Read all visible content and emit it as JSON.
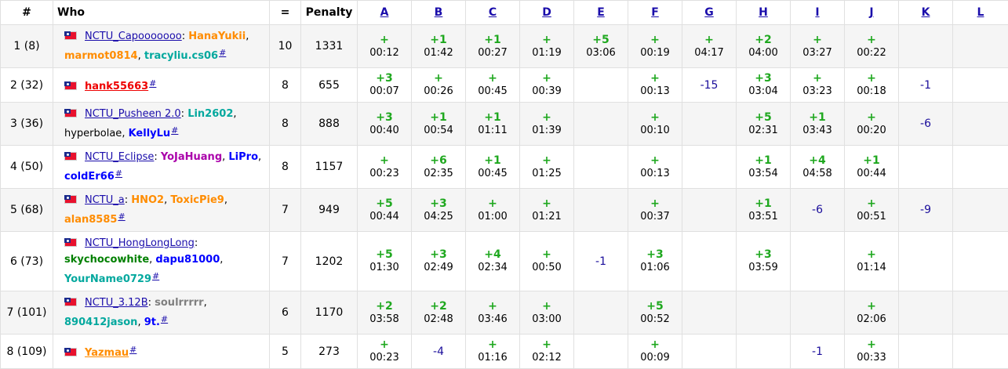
{
  "header": {
    "rank": "#",
    "who": "Who",
    "solved": "=",
    "penalty": "Penalty",
    "problems": [
      "A",
      "B",
      "C",
      "D",
      "E",
      "F",
      "G",
      "H",
      "I",
      "J",
      "K",
      "L"
    ]
  },
  "colors": {
    "link": "#1a0dab",
    "accepted": "#1fa81f",
    "wrong": "#1a0d9b",
    "row_alt": "#f5f5f5",
    "handle_red": "#e00000",
    "handle_orange": "#ff8c00",
    "handle_violet": "#aa00aa",
    "handle_blue": "#0000ff",
    "handle_cyan": "#03a89e",
    "handle_green": "#008000",
    "handle_gray": "#808080"
  },
  "rows": [
    {
      "rank": "1 (8)",
      "solved": "10",
      "penalty": "1331",
      "team": "NCTU_Capooooooo",
      "team_style": "link",
      "members": [
        {
          "name": "HanaYukii",
          "color": "#ff8c00"
        },
        {
          "name": "marmot0814",
          "color": "#ff8c00"
        },
        {
          "name": "tracyliu.cs06",
          "color": "#03a89e"
        }
      ],
      "cells": [
        {
          "mark": "+",
          "time": "00:12"
        },
        {
          "mark": "+1",
          "time": "01:42"
        },
        {
          "mark": "+1",
          "time": "00:27"
        },
        {
          "mark": "+",
          "time": "01:19"
        },
        {
          "mark": "+5",
          "time": "03:06"
        },
        {
          "mark": "+",
          "time": "00:19"
        },
        {
          "mark": "+",
          "time": "04:17"
        },
        {
          "mark": "+2",
          "time": "04:00"
        },
        {
          "mark": "+",
          "time": "03:27"
        },
        {
          "mark": "+",
          "time": "00:22"
        },
        {
          "mark": "",
          "time": ""
        },
        {
          "mark": "",
          "time": ""
        }
      ]
    },
    {
      "rank": "2 (32)",
      "solved": "8",
      "penalty": "655",
      "team": "hank55663",
      "team_style": "red",
      "members": [],
      "cells": [
        {
          "mark": "+3",
          "time": "00:07"
        },
        {
          "mark": "+",
          "time": "00:26"
        },
        {
          "mark": "+",
          "time": "00:45"
        },
        {
          "mark": "+",
          "time": "00:39"
        },
        {
          "mark": "",
          "time": ""
        },
        {
          "mark": "+",
          "time": "00:13"
        },
        {
          "mark": "-15",
          "time": ""
        },
        {
          "mark": "+3",
          "time": "03:04"
        },
        {
          "mark": "+",
          "time": "03:23"
        },
        {
          "mark": "+",
          "time": "00:18"
        },
        {
          "mark": "-1",
          "time": ""
        },
        {
          "mark": "",
          "time": ""
        }
      ]
    },
    {
      "rank": "3 (36)",
      "solved": "8",
      "penalty": "888",
      "team": "NCTU_Pusheen 2.0",
      "team_style": "link",
      "members": [
        {
          "name": "Lin2602",
          "color": "#03a89e"
        },
        {
          "name": "hyperbolae",
          "color": "#000000",
          "plain": true
        },
        {
          "name": "KellyLu",
          "color": "#0000ff"
        }
      ],
      "cells": [
        {
          "mark": "+3",
          "time": "00:40"
        },
        {
          "mark": "+1",
          "time": "00:54"
        },
        {
          "mark": "+1",
          "time": "01:11"
        },
        {
          "mark": "+",
          "time": "01:39"
        },
        {
          "mark": "",
          "time": ""
        },
        {
          "mark": "+",
          "time": "00:10"
        },
        {
          "mark": "",
          "time": ""
        },
        {
          "mark": "+5",
          "time": "02:31"
        },
        {
          "mark": "+1",
          "time": "03:43"
        },
        {
          "mark": "+",
          "time": "00:20"
        },
        {
          "mark": "-6",
          "time": ""
        },
        {
          "mark": "",
          "time": ""
        }
      ]
    },
    {
      "rank": "4 (50)",
      "solved": "8",
      "penalty": "1157",
      "team": "NCTU_Eclipse",
      "team_style": "link",
      "members": [
        {
          "name": "YoJaHuang",
          "color": "#aa00aa"
        },
        {
          "name": "LiPro",
          "color": "#0000ff"
        },
        {
          "name": "coldEr66",
          "color": "#0000ff"
        }
      ],
      "cells": [
        {
          "mark": "+",
          "time": "00:23"
        },
        {
          "mark": "+6",
          "time": "02:35"
        },
        {
          "mark": "+1",
          "time": "00:45"
        },
        {
          "mark": "+",
          "time": "01:25"
        },
        {
          "mark": "",
          "time": ""
        },
        {
          "mark": "+",
          "time": "00:13"
        },
        {
          "mark": "",
          "time": ""
        },
        {
          "mark": "+1",
          "time": "03:54"
        },
        {
          "mark": "+4",
          "time": "04:58"
        },
        {
          "mark": "+1",
          "time": "00:44"
        },
        {
          "mark": "",
          "time": ""
        },
        {
          "mark": "",
          "time": ""
        }
      ]
    },
    {
      "rank": "5 (68)",
      "solved": "7",
      "penalty": "949",
      "team": "NCTU_a",
      "team_style": "link",
      "members": [
        {
          "name": "HNO2",
          "color": "#ff8c00"
        },
        {
          "name": "ToxicPie9",
          "color": "#ff8c00"
        },
        {
          "name": "alan8585",
          "color": "#ff8c00"
        }
      ],
      "cells": [
        {
          "mark": "+5",
          "time": "00:44"
        },
        {
          "mark": "+3",
          "time": "04:25"
        },
        {
          "mark": "+",
          "time": "01:00"
        },
        {
          "mark": "+",
          "time": "01:21"
        },
        {
          "mark": "",
          "time": ""
        },
        {
          "mark": "+",
          "time": "00:37"
        },
        {
          "mark": "",
          "time": ""
        },
        {
          "mark": "+1",
          "time": "03:51"
        },
        {
          "mark": "-6",
          "time": ""
        },
        {
          "mark": "+",
          "time": "00:51"
        },
        {
          "mark": "-9",
          "time": ""
        },
        {
          "mark": "",
          "time": ""
        }
      ]
    },
    {
      "rank": "6 (73)",
      "solved": "7",
      "penalty": "1202",
      "team": "NCTU_HongLongLong",
      "team_style": "link",
      "members": [
        {
          "name": "skychocowhite",
          "color": "#008000"
        },
        {
          "name": "dapu81000",
          "color": "#0000ff"
        },
        {
          "name": "YourName0729",
          "color": "#03a89e"
        }
      ],
      "cells": [
        {
          "mark": "+5",
          "time": "01:30"
        },
        {
          "mark": "+3",
          "time": "02:49"
        },
        {
          "mark": "+4",
          "time": "02:34"
        },
        {
          "mark": "+",
          "time": "00:50"
        },
        {
          "mark": "-1",
          "time": ""
        },
        {
          "mark": "+3",
          "time": "01:06"
        },
        {
          "mark": "",
          "time": ""
        },
        {
          "mark": "+3",
          "time": "03:59"
        },
        {
          "mark": "",
          "time": ""
        },
        {
          "mark": "+",
          "time": "01:14"
        },
        {
          "mark": "",
          "time": ""
        },
        {
          "mark": "",
          "time": ""
        }
      ]
    },
    {
      "rank": "7 (101)",
      "solved": "6",
      "penalty": "1170",
      "team": "NCTU_3.12B",
      "team_style": "link",
      "members": [
        {
          "name": "soulrrrrr",
          "color": "#808080"
        },
        {
          "name": "890412jason",
          "color": "#03a89e"
        },
        {
          "name": "9t.",
          "color": "#0000ff"
        }
      ],
      "cells": [
        {
          "mark": "+2",
          "time": "03:58"
        },
        {
          "mark": "+2",
          "time": "02:48"
        },
        {
          "mark": "+",
          "time": "03:46"
        },
        {
          "mark": "+",
          "time": "03:00"
        },
        {
          "mark": "",
          "time": ""
        },
        {
          "mark": "+5",
          "time": "00:52"
        },
        {
          "mark": "",
          "time": ""
        },
        {
          "mark": "",
          "time": ""
        },
        {
          "mark": "",
          "time": ""
        },
        {
          "mark": "+",
          "time": "02:06"
        },
        {
          "mark": "",
          "time": ""
        },
        {
          "mark": "",
          "time": ""
        }
      ]
    },
    {
      "rank": "8 (109)",
      "solved": "5",
      "penalty": "273",
      "team": "Yazmau",
      "team_style": "orange",
      "members": [],
      "cells": [
        {
          "mark": "+",
          "time": "00:23"
        },
        {
          "mark": "-4",
          "time": ""
        },
        {
          "mark": "+",
          "time": "01:16"
        },
        {
          "mark": "+",
          "time": "02:12"
        },
        {
          "mark": "",
          "time": ""
        },
        {
          "mark": "+",
          "time": "00:09"
        },
        {
          "mark": "",
          "time": ""
        },
        {
          "mark": "",
          "time": ""
        },
        {
          "mark": "-1",
          "time": ""
        },
        {
          "mark": "+",
          "time": "00:33"
        },
        {
          "mark": "",
          "time": ""
        },
        {
          "mark": "",
          "time": ""
        }
      ]
    }
  ]
}
